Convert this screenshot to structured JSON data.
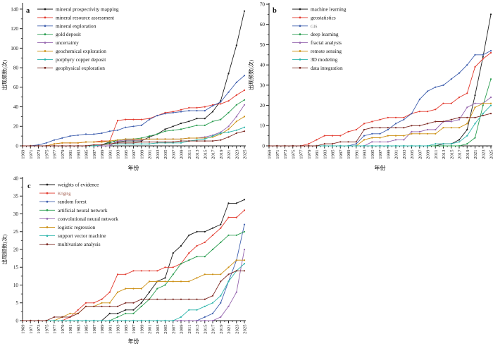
{
  "figure": {
    "background": "#ffffff",
    "axis_color": "#222222",
    "xlabel": "年份",
    "ylabel": "出现频数(次)"
  },
  "chart_data": [
    {
      "id": "a",
      "panel_label": "a",
      "type": "line",
      "xlabel": "年份",
      "ylabel": "出现频数(次)",
      "ylim": [
        0,
        145
      ],
      "yticks": [
        0,
        20,
        40,
        60,
        80,
        100,
        120,
        140
      ],
      "grid": false,
      "legend_position": "top-left-inside",
      "x": [
        1969,
        1971,
        1973,
        1975,
        1977,
        1979,
        1981,
        1983,
        1985,
        1987,
        1989,
        1991,
        1993,
        1995,
        1997,
        1999,
        2001,
        2003,
        2005,
        2007,
        2009,
        2011,
        2013,
        2015,
        2017,
        2019,
        2021,
        2023,
        2025
      ],
      "series": [
        {
          "name": "mineral prospectivity mapping",
          "color": "#1c1c1c",
          "values": [
            0,
            0,
            0,
            0,
            0,
            0,
            0,
            0,
            0,
            0,
            1,
            4,
            4,
            5,
            5,
            5,
            9,
            12,
            17,
            20,
            23,
            25,
            28,
            28,
            35,
            46,
            74,
            103,
            138
          ]
        },
        {
          "name": "mineral resource assessment",
          "color": "#e23a2e",
          "values": [
            0,
            0,
            0,
            0,
            2,
            3,
            3,
            3,
            4,
            4,
            5,
            5,
            26,
            27,
            27,
            27,
            28,
            31,
            34,
            35,
            37,
            39,
            39,
            40,
            42,
            43,
            46,
            52,
            57
          ]
        },
        {
          "name": "mineral exploration",
          "color": "#3f5fae",
          "values": [
            0,
            0,
            1,
            3,
            6,
            8,
            10,
            11,
            12,
            12,
            13,
            15,
            16,
            19,
            20,
            21,
            27,
            31,
            33,
            34,
            35,
            36,
            36,
            36,
            41,
            45,
            55,
            65,
            72
          ]
        },
        {
          "name": "gold deposit",
          "color": "#2a9d50",
          "values": [
            0,
            0,
            0,
            0,
            0,
            0,
            0,
            0,
            0,
            0,
            1,
            3,
            6,
            7,
            7,
            8,
            10,
            12,
            15,
            16,
            17,
            19,
            21,
            21,
            25,
            27,
            34,
            42,
            47
          ]
        },
        {
          "name": "uncertainty",
          "color": "#9565ae",
          "values": [
            0,
            0,
            0,
            0,
            0,
            0,
            0,
            0,
            0,
            0,
            0,
            0,
            5,
            6,
            6,
            6,
            7,
            7,
            7,
            7,
            7,
            8,
            8,
            9,
            11,
            14,
            20,
            30,
            42
          ]
        },
        {
          "name": "geochemical exploration",
          "color": "#cc8f12",
          "values": [
            0,
            0,
            0,
            0,
            2,
            3,
            3,
            3,
            4,
            4,
            4,
            5,
            6,
            7,
            7,
            7,
            7,
            7,
            7,
            7,
            7,
            8,
            8,
            8,
            9,
            12,
            17,
            25,
            30
          ]
        },
        {
          "name": "porphyry copper deposit",
          "color": "#2cb5ab",
          "values": [
            0,
            0,
            0,
            0,
            0,
            0,
            0,
            0,
            0,
            0,
            1,
            2,
            2,
            2,
            2,
            2,
            2,
            3,
            3,
            3,
            3,
            5,
            6,
            7,
            10,
            13,
            14,
            16,
            19
          ]
        },
        {
          "name": "geophysical exploration",
          "color": "#7c2822",
          "values": [
            0,
            0,
            0,
            0,
            0,
            0,
            0,
            0,
            0,
            1,
            1,
            2,
            3,
            3,
            3,
            4,
            4,
            4,
            4,
            4,
            5,
            5,
            5,
            5,
            5,
            6,
            9,
            13,
            15
          ]
        }
      ]
    },
    {
      "id": "b",
      "panel_label": "b",
      "type": "line",
      "xlabel": "年份",
      "ylabel": "出现频数(次)",
      "ylim": [
        0,
        70
      ],
      "yticks": [
        0,
        10,
        20,
        30,
        40,
        50,
        60,
        70
      ],
      "grid": false,
      "legend_position": "top-left-inside",
      "x": [
        1969,
        1971,
        1973,
        1975,
        1977,
        1979,
        1981,
        1983,
        1985,
        1987,
        1989,
        1991,
        1993,
        1995,
        1997,
        1999,
        2001,
        2003,
        2005,
        2007,
        2009,
        2011,
        2013,
        2015,
        2017,
        2019,
        2021,
        2023,
        2025
      ],
      "series": [
        {
          "name": "machine learning",
          "color": "#1c1c1c",
          "values": [
            0,
            0,
            0,
            0,
            0,
            0,
            0,
            0,
            0,
            0,
            0,
            0,
            0,
            0,
            0,
            0,
            0,
            0,
            0,
            0,
            0,
            0,
            1,
            1,
            3,
            8,
            25,
            44,
            65
          ]
        },
        {
          "name": "geostatistics",
          "color": "#e23a2e",
          "values": [
            0,
            0,
            0,
            0,
            0,
            1,
            3,
            5,
            5,
            5,
            7,
            8,
            11,
            12,
            13,
            14,
            14,
            14,
            16,
            17,
            17,
            18,
            21,
            21,
            24,
            26,
            39,
            43,
            46
          ]
        },
        {
          "name": "GIS",
          "color": "#3f5fae",
          "label_variant": true,
          "label_color": "#6e6e6e",
          "values": [
            0,
            0,
            0,
            0,
            0,
            0,
            0,
            0,
            0,
            0,
            0,
            1,
            5,
            6,
            6,
            8,
            11,
            13,
            16,
            23,
            27,
            29,
            30,
            33,
            36,
            40,
            45,
            45,
            47
          ]
        },
        {
          "name": "deep learning",
          "color": "#2a9d50",
          "values": [
            0,
            0,
            0,
            0,
            0,
            0,
            0,
            0,
            0,
            0,
            0,
            0,
            0,
            0,
            0,
            0,
            0,
            0,
            0,
            0,
            0,
            0,
            0,
            0,
            0,
            1,
            4,
            20,
            33
          ]
        },
        {
          "name": "fractal analysis",
          "color": "#9565ae",
          "values": [
            0,
            0,
            0,
            0,
            0,
            0,
            0,
            0,
            0,
            0,
            0,
            0,
            0,
            2,
            2,
            2,
            3,
            3,
            7,
            7,
            8,
            8,
            12,
            12,
            13,
            19,
            21,
            21,
            24
          ]
        },
        {
          "name": "remote sensing",
          "color": "#cc8f12",
          "values": [
            0,
            0,
            0,
            0,
            0,
            0,
            0,
            0,
            0,
            0,
            0,
            0,
            3,
            4,
            4,
            5,
            5,
            5,
            6,
            6,
            6,
            6,
            9,
            9,
            9,
            11,
            19,
            21,
            21
          ]
        },
        {
          "name": "3D modeling",
          "color": "#2cb5ab",
          "values": [
            0,
            0,
            0,
            0,
            0,
            0,
            0,
            0,
            0,
            0,
            0,
            0,
            0,
            0,
            0,
            0,
            0,
            0,
            0,
            0,
            0,
            1,
            1,
            1,
            2,
            5,
            11,
            16,
            20
          ]
        },
        {
          "name": "data integration",
          "color": "#7c2822",
          "values": [
            0,
            0,
            0,
            0,
            0,
            0,
            0,
            1,
            1,
            2,
            2,
            2,
            8,
            9,
            9,
            9,
            9,
            9,
            10,
            10,
            11,
            12,
            12,
            13,
            14,
            14,
            14,
            15,
            16
          ]
        }
      ]
    },
    {
      "id": "c",
      "panel_label": "c",
      "type": "line",
      "xlabel": "年份",
      "ylabel": "出现频数(次)",
      "ylim": [
        0,
        40
      ],
      "yticks": [
        0,
        5,
        10,
        15,
        20,
        25,
        30,
        35,
        40
      ],
      "grid": false,
      "legend_position": "top-left-inside",
      "x": [
        1969,
        1971,
        1973,
        1975,
        1977,
        1979,
        1981,
        1983,
        1985,
        1987,
        1989,
        1991,
        1993,
        1995,
        1997,
        1999,
        2001,
        2003,
        2005,
        2007,
        2009,
        2011,
        2013,
        2015,
        2017,
        2019,
        2021,
        2023,
        2025
      ],
      "series": [
        {
          "name": "weights of evidence",
          "color": "#1c1c1c",
          "values": [
            0,
            0,
            0,
            0,
            0,
            0,
            0,
            0,
            0,
            0,
            0,
            2,
            2,
            3,
            3,
            5,
            8,
            11,
            12,
            19,
            21,
            24,
            25,
            25,
            26,
            27,
            33,
            33,
            34
          ]
        },
        {
          "name": "Kriging",
          "color": "#e23a2e",
          "label_variant": true,
          "label_color": "#9a5040",
          "values": [
            0,
            0,
            0,
            0,
            0,
            0,
            1,
            3,
            5,
            5,
            6,
            8,
            13,
            13,
            14,
            14,
            14,
            14,
            15,
            15,
            16,
            19,
            21,
            22,
            24,
            26,
            29,
            29,
            31
          ]
        },
        {
          "name": "random forest",
          "color": "#3f5fae",
          "values": [
            0,
            0,
            0,
            0,
            0,
            0,
            0,
            0,
            0,
            0,
            0,
            0,
            0,
            0,
            0,
            0,
            0,
            0,
            0,
            0,
            0,
            0,
            0,
            1,
            2,
            5,
            11,
            17,
            27
          ]
        },
        {
          "name": "artificial neural network",
          "color": "#2a9d50",
          "values": [
            0,
            0,
            0,
            0,
            0,
            0,
            0,
            0,
            0,
            0,
            0,
            0,
            1,
            2,
            2,
            4,
            6,
            9,
            10,
            13,
            16,
            17,
            18,
            18,
            20,
            22,
            24,
            24,
            25
          ]
        },
        {
          "name": "convolutional neural network",
          "color": "#9565ae",
          "values": [
            0,
            0,
            0,
            0,
            0,
            0,
            0,
            0,
            0,
            0,
            0,
            0,
            0,
            0,
            0,
            0,
            0,
            0,
            0,
            0,
            0,
            0,
            0,
            0,
            0,
            1,
            4,
            8,
            20
          ]
        },
        {
          "name": "logistic regression",
          "color": "#cc8f12",
          "values": [
            0,
            0,
            0,
            0,
            0,
            1,
            2,
            2,
            4,
            4,
            5,
            5,
            8,
            9,
            9,
            9,
            11,
            11,
            11,
            11,
            11,
            11,
            12,
            13,
            13,
            13,
            15,
            17,
            17
          ]
        },
        {
          "name": "support vector machine",
          "color": "#2cb5ab",
          "values": [
            0,
            0,
            0,
            0,
            0,
            0,
            0,
            0,
            0,
            0,
            0,
            0,
            0,
            0,
            0,
            0,
            0,
            0,
            0,
            0,
            1,
            3,
            3,
            4,
            5,
            7,
            11,
            14,
            16
          ]
        },
        {
          "name": "multivariate analysis",
          "color": "#7c2822",
          "values": [
            0,
            0,
            0,
            0,
            1,
            1,
            1,
            2,
            4,
            4,
            4,
            4,
            4,
            5,
            5,
            6,
            6,
            6,
            6,
            6,
            6,
            6,
            6,
            6,
            7,
            11,
            13,
            14,
            14
          ]
        }
      ]
    }
  ]
}
